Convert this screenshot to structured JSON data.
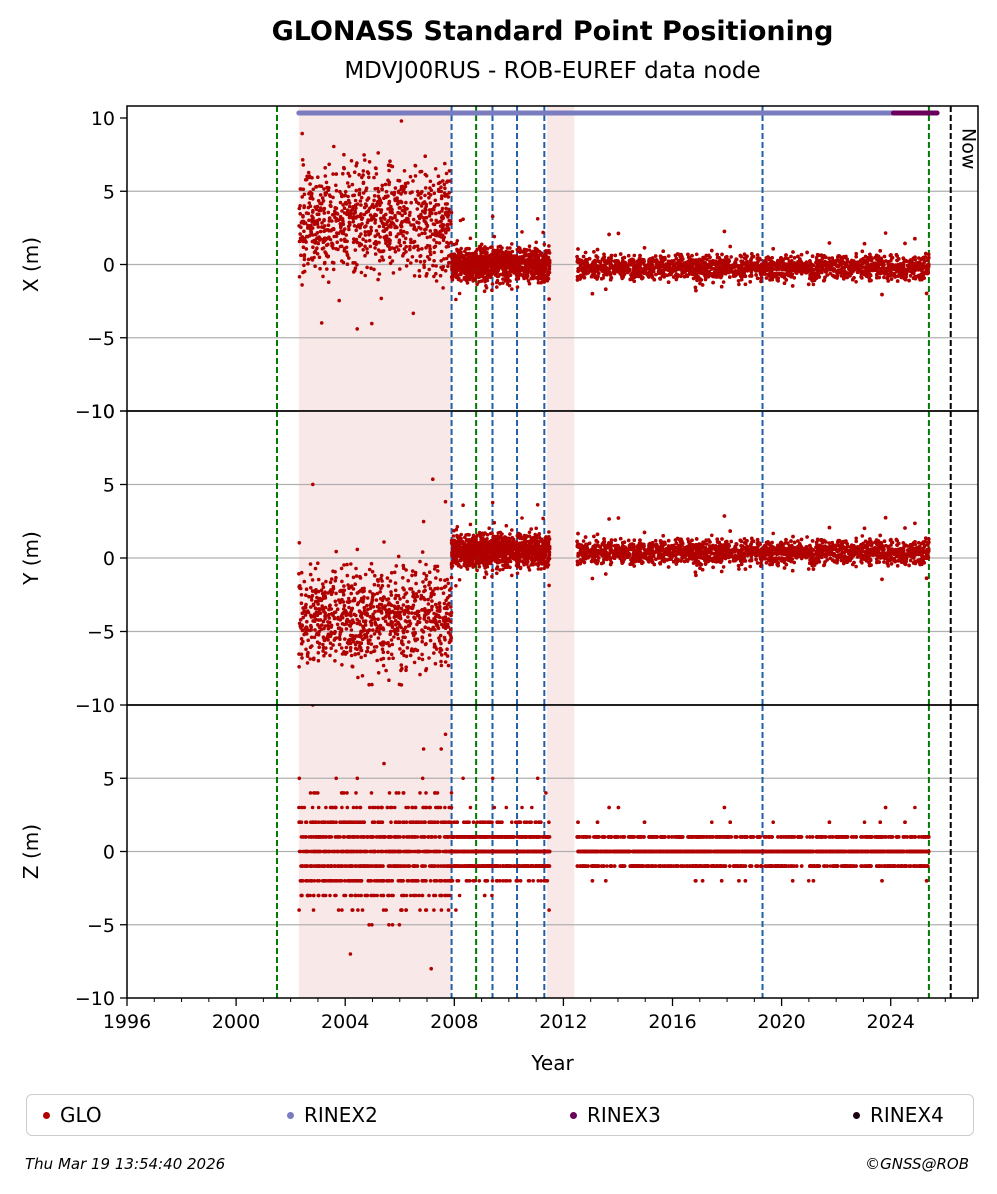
{
  "chart_data": {
    "type": "scatter",
    "title": "GLONASS Standard Point Positioning",
    "subtitle": "MDVJ00RUS - ROB-EUREF data node",
    "xlabel": "Year",
    "xlim": [
      1996,
      2027.2
    ],
    "x_ticks": [
      "1996",
      "2000",
      "2004",
      "2008",
      "2012",
      "2016",
      "2020",
      "2024"
    ],
    "grid": "horizontal",
    "legend_position": "bottom",
    "panels": [
      {
        "ylabel": "X (m)",
        "ylim": [
          -10,
          10
        ],
        "y_ticks": [
          "−10",
          "−5",
          "0",
          "5",
          "10"
        ],
        "segments": [
          {
            "x": [
              2002.3,
              2007.9
            ],
            "center": 3.0,
            "spread": 6.5
          },
          {
            "x": [
              2007.9,
              2011.5
            ],
            "center": 0.0,
            "spread": 2.0
          },
          {
            "x": [
              2012.5,
              2025.4
            ],
            "center": -0.2,
            "spread": 1.5
          }
        ]
      },
      {
        "ylabel": "Y (m)",
        "ylim": [
          -10,
          10
        ],
        "y_ticks": [
          "−10",
          "−5",
          "0",
          "5",
          "10"
        ],
        "segments": [
          {
            "x": [
              2002.3,
              2007.9
            ],
            "center": -4.0,
            "spread": 6.0
          },
          {
            "x": [
              2007.9,
              2011.5
            ],
            "center": 0.5,
            "spread": 2.0
          },
          {
            "x": [
              2012.5,
              2025.4
            ],
            "center": 0.4,
            "spread": 1.5
          }
        ]
      },
      {
        "ylabel": "Z (m)",
        "ylim": [
          -10,
          10
        ],
        "y_ticks": [
          "−10",
          "−5",
          "0",
          "5"
        ],
        "segments": [
          {
            "x": [
              2002.3,
              2007.9
            ],
            "center": 0.0,
            "spread": 6.5
          },
          {
            "x": [
              2007.9,
              2011.5
            ],
            "center": 0.0,
            "spread": 3.0
          },
          {
            "x": [
              2012.5,
              2025.4
            ],
            "center": 0.0,
            "spread": 2.0
          }
        ]
      }
    ],
    "vertical_lines": [
      {
        "x": 2001.5,
        "color": "#007a00",
        "style": "dash"
      },
      {
        "x": 2007.9,
        "color": "#1f5fa8",
        "style": "dash"
      },
      {
        "x": 2008.8,
        "color": "#007a00",
        "style": "dash"
      },
      {
        "x": 2009.4,
        "color": "#1f5fa8",
        "style": "dash"
      },
      {
        "x": 2010.3,
        "color": "#1f5fa8",
        "style": "dash"
      },
      {
        "x": 2011.3,
        "color": "#1f5fa8",
        "style": "dash"
      },
      {
        "x": 2019.3,
        "color": "#1f5fa8",
        "style": "dash"
      },
      {
        "x": 2025.4,
        "color": "#007a00",
        "style": "dash"
      },
      {
        "x": 2026.2,
        "color": "#000000",
        "style": "dash"
      }
    ],
    "now_label": "Now",
    "now_x": 2026.2,
    "rinex_bar": [
      {
        "name": "RINEX2",
        "x": [
          2002.3,
          2025.4
        ],
        "color": "#7b7bbf"
      },
      {
        "name": "RINEX3",
        "x": [
          2024.1,
          2025.7
        ],
        "color": "#6b005a"
      }
    ],
    "series": [
      {
        "name": "GLO",
        "color": "#b00000"
      },
      {
        "name": "RINEX2",
        "color": "#7b7bbf"
      },
      {
        "name": "RINEX3",
        "color": "#6b005a"
      },
      {
        "name": "RINEX4",
        "color": "#1a0010"
      }
    ]
  },
  "footer": {
    "timestamp": "Thu Mar 19 13:54:40 2026",
    "copyright": "©GNSS@ROB"
  }
}
